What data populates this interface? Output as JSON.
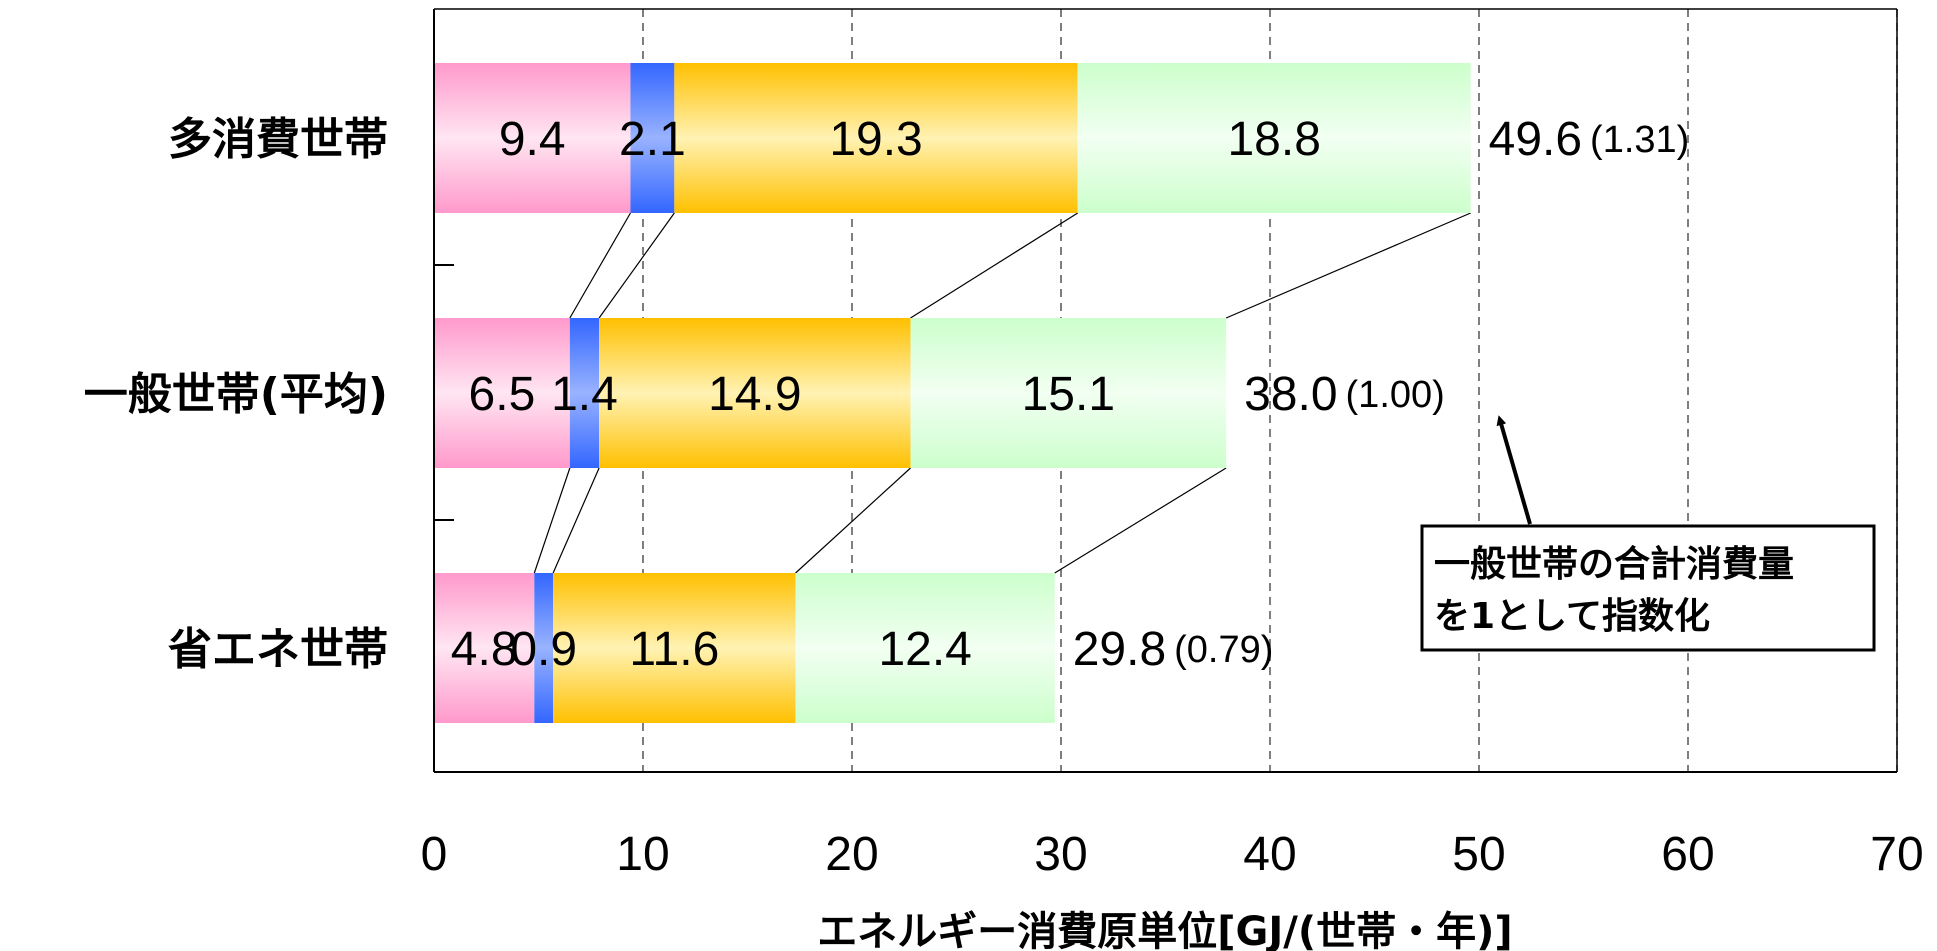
{
  "chart_data": {
    "type": "bar",
    "orientation": "horizontal",
    "stacked": true,
    "categories": [
      "多消費世帯",
      "一般世帯(平均)",
      "省エネ世帯"
    ],
    "series": [
      {
        "values": [
          9.4,
          6.5,
          4.8
        ],
        "color": "#ff99cc"
      },
      {
        "values": [
          2.1,
          1.4,
          0.9
        ],
        "color": "#3366ff"
      },
      {
        "values": [
          19.3,
          14.9,
          11.6
        ],
        "color": "#ffc000"
      },
      {
        "values": [
          18.8,
          15.1,
          12.4
        ],
        "color": "#ccffcc"
      }
    ],
    "totals": [
      "49.6",
      "38.0",
      "29.8"
    ],
    "index_labels": [
      "(1.31)",
      "(1.00)",
      "(0.79)"
    ],
    "xlim": [
      0,
      70
    ],
    "x_ticks": [
      "0",
      "10",
      "20",
      "30",
      "40",
      "50",
      "60",
      "70"
    ],
    "xlabel": "エネルギー消費原単位[GJ/(世帯・年)]",
    "ylabel": "",
    "grid": "vertical-dashed",
    "annotation": {
      "lines": [
        "一般世帯の合計消費量",
        "を1として指数化"
      ],
      "points_to": "一般世帯(平均)"
    }
  }
}
